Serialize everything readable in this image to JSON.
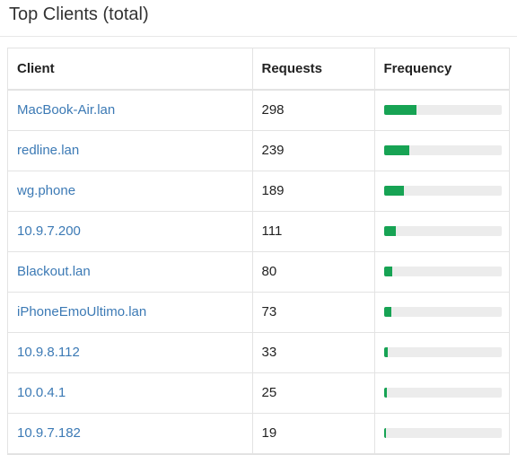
{
  "title": "Top Clients (total)",
  "columns": {
    "client": "Client",
    "requests": "Requests",
    "frequency": "Frequency"
  },
  "colors": {
    "bar": "#17a354",
    "track": "#ececec",
    "link": "#3c7ab5"
  },
  "rows": [
    {
      "client": "MacBook-Air.lan",
      "requests": "298",
      "frequency_pct": 27.5
    },
    {
      "client": "redline.lan",
      "requests": "239",
      "frequency_pct": 22
    },
    {
      "client": "wg.phone",
      "requests": "189",
      "frequency_pct": 17.5
    },
    {
      "client": "10.9.7.200",
      "requests": "111",
      "frequency_pct": 10.3
    },
    {
      "client": "Blackout.lan",
      "requests": "80",
      "frequency_pct": 7.4
    },
    {
      "client": "iPhoneEmoUltimo.lan",
      "requests": "73",
      "frequency_pct": 6.7
    },
    {
      "client": "10.9.8.112",
      "requests": "33",
      "frequency_pct": 3.1
    },
    {
      "client": "10.0.4.1",
      "requests": "25",
      "frequency_pct": 2.3
    },
    {
      "client": "10.9.7.182",
      "requests": "19",
      "frequency_pct": 1.8
    }
  ]
}
